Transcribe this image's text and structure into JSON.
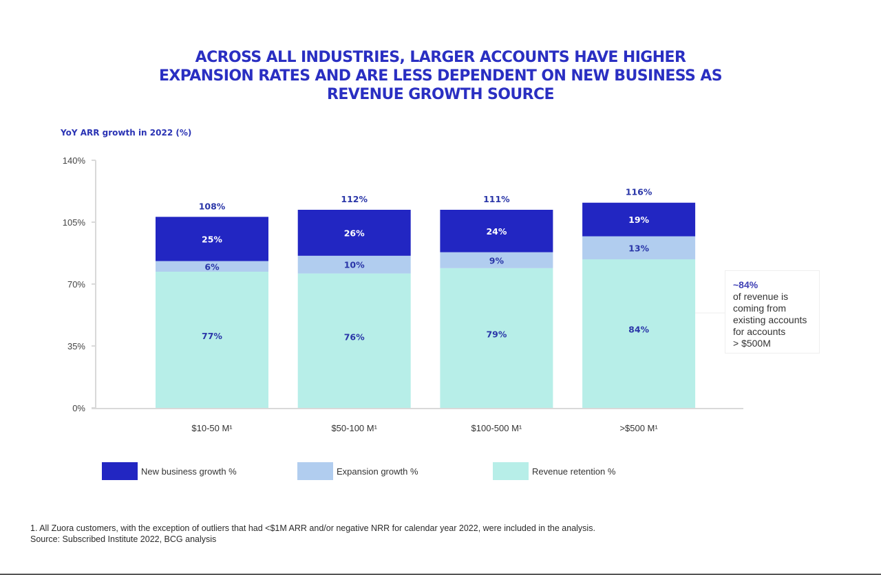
{
  "colors": {
    "new_business": "#2226c2",
    "expansion": "#b1cdef",
    "retention": "#b7eee8",
    "title": "#2a2fc2",
    "label_dark": "#2a36a8",
    "label_light": "#ffffff",
    "axis": "#d9d9d9",
    "tick_text": "#444444"
  },
  "title_lines": [
    "ACROSS ALL INDUSTRIES, LARGER ACCOUNTS HAVE HIGHER",
    "EXPANSION RATES AND ARE LESS DEPENDENT ON NEW BUSINESS AS",
    "REVENUE GROWTH SOURCE"
  ],
  "annotation": {
    "highlight": "~84%",
    "lines": [
      "of revenue is",
      "coming from",
      "existing accounts",
      "for accounts",
      "> $500M"
    ]
  },
  "legend": [
    {
      "label": "New business growth %",
      "series": "new_business"
    },
    {
      "label": "Expansion growth %",
      "series": "expansion"
    },
    {
      "label": "Revenue retention %",
      "series": "retention"
    }
  ],
  "footnotes": [
    "1. All Zuora customers, with the exception of outliers that had <$1M ARR and/or negative NRR for calendar year 2022, were included in the analysis.",
    "Source: Subscribed Institute 2022, BCG analysis"
  ],
  "chart_data": {
    "type": "bar",
    "stacked": true,
    "title": "Across all industries, larger accounts have higher expansion rates and are less dependent on new business as revenue growth source",
    "ylabel": "YoY ARR growth in 2022 (%)",
    "xlabel": "",
    "categories": [
      "$10-50 M¹",
      "$50-100 M¹",
      "$100-500 M¹",
      ">$500 M¹"
    ],
    "series": [
      {
        "name": "Revenue retention %",
        "key": "retention",
        "values": [
          77,
          76,
          79,
          84
        ]
      },
      {
        "name": "Expansion growth %",
        "key": "expansion",
        "values": [
          6,
          10,
          9,
          13
        ]
      },
      {
        "name": "New business growth %",
        "key": "new_business",
        "values": [
          25,
          26,
          24,
          19
        ]
      }
    ],
    "totals": [
      108,
      112,
      111,
      116
    ],
    "ylim": [
      0,
      140
    ],
    "yticks": [
      0,
      35,
      70,
      105,
      140
    ],
    "ytick_labels": [
      "0%",
      "35%",
      "70%",
      "105%",
      "140%"
    ],
    "grid": false,
    "legend_position": "bottom"
  }
}
